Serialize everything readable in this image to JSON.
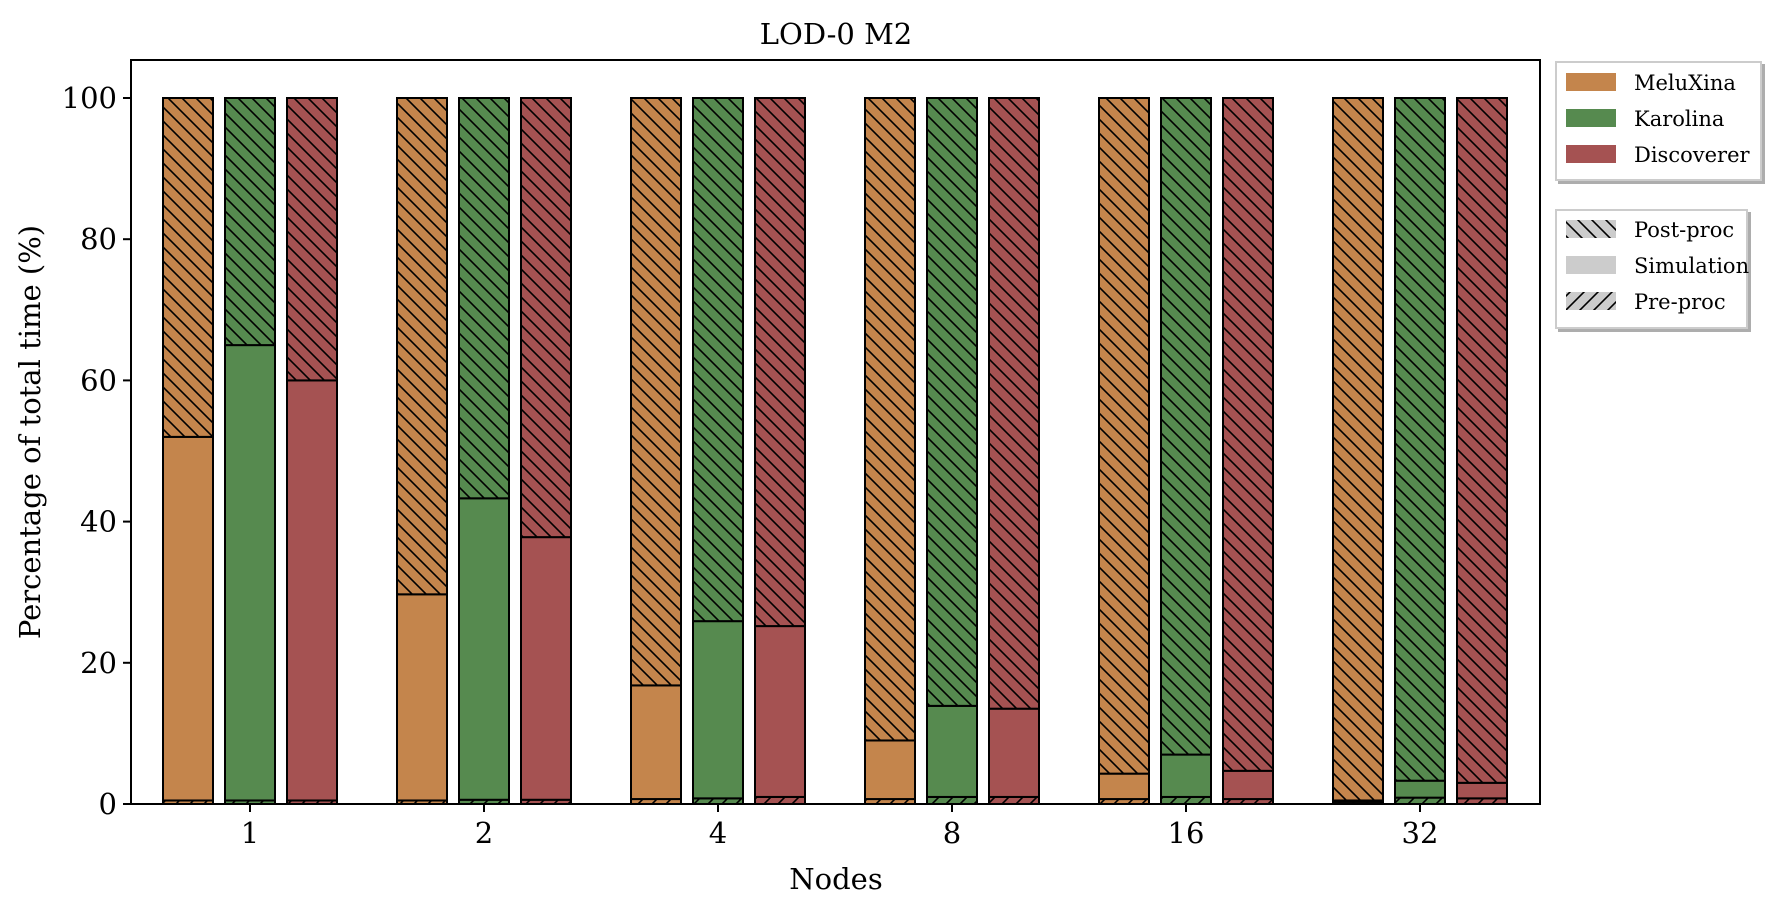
{
  "chart_data": {
    "type": "bar",
    "title": "LOD-0 M2",
    "xlabel": "Nodes",
    "ylabel": "Percentage of total time (%)",
    "ylim": [
      0,
      100
    ],
    "yticks": [
      0,
      20,
      40,
      60,
      80,
      100
    ],
    "categories": [
      "1",
      "2",
      "4",
      "8",
      "16",
      "32"
    ],
    "grid": false,
    "stacked": true,
    "stack_order_bottom_to_top": [
      "Pre-proc",
      "Simulation",
      "Post-proc"
    ],
    "series": [
      {
        "name": "MeluXina",
        "color": "#c4854c",
        "pre_proc": [
          0.5,
          0.5,
          0.7,
          0.7,
          0.7,
          0.3
        ],
        "simulation": [
          51.5,
          29.2,
          16.1,
          8.3,
          3.6,
          0.2
        ],
        "post_proc": [
          48.0,
          70.3,
          83.2,
          91.0,
          95.7,
          99.5
        ]
      },
      {
        "name": "Karolina",
        "color": "#568a4f",
        "pre_proc": [
          0.5,
          0.6,
          0.8,
          1.0,
          1.0,
          0.9
        ],
        "simulation": [
          64.5,
          42.7,
          25.1,
          12.9,
          6.0,
          2.4
        ],
        "post_proc": [
          35.0,
          56.7,
          74.1,
          86.1,
          93.0,
          96.7
        ]
      },
      {
        "name": "Discoverer",
        "color": "#a55252",
        "pre_proc": [
          0.5,
          0.6,
          1.0,
          1.0,
          0.7,
          0.8
        ],
        "simulation": [
          59.5,
          37.2,
          24.2,
          12.5,
          4.0,
          2.2
        ],
        "post_proc": [
          40.0,
          62.2,
          74.8,
          86.5,
          95.3,
          97.0
        ]
      }
    ],
    "legend": {
      "placement": "outside-right-top",
      "systems": [
        "MeluXina",
        "Karolina",
        "Discoverer"
      ],
      "phases": [
        "Post-proc",
        "Simulation",
        "Pre-proc"
      ]
    }
  }
}
